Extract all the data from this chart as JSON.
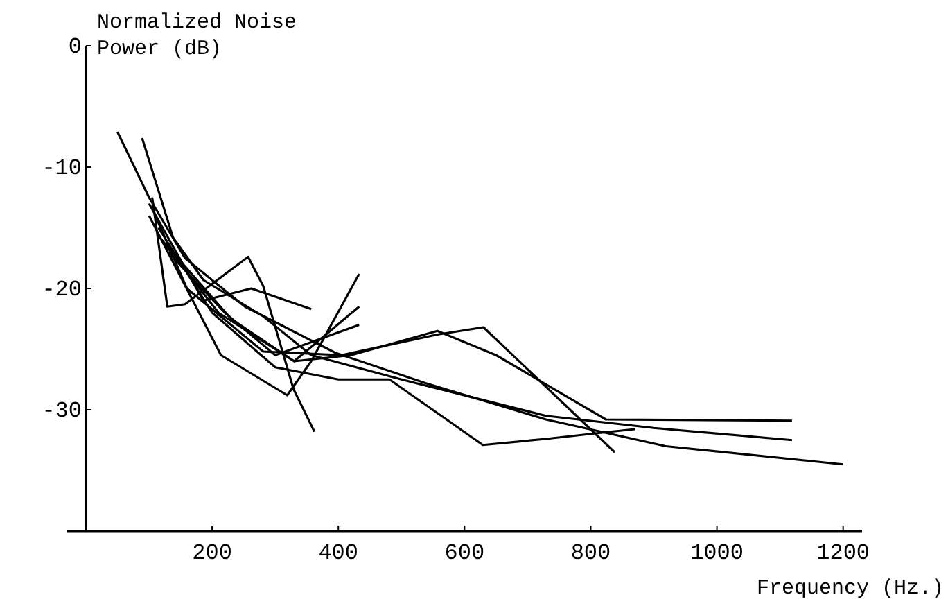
{
  "chart_data": {
    "type": "line",
    "ylabel": "Normalized Noise\nPower (dB)",
    "xlabel": "Frequency (Hz.)",
    "xlim": [
      0,
      1230
    ],
    "xticks": [
      200,
      400,
      600,
      800,
      1000,
      1200
    ],
    "ylim": [
      -40,
      0
    ],
    "yticks": [
      0,
      -10,
      -20,
      -30
    ],
    "grid": false,
    "marker": "none",
    "line_style": "solid",
    "series": [
      {
        "color": "#000000",
        "x": [
          50,
          100,
          157,
          252,
          395,
          538,
          729,
          919,
          1200
        ],
        "values": [
          -7.1,
          -12.5,
          -17.5,
          -21.5,
          -25.3,
          -27.8,
          -30.8,
          -33,
          -34.5
        ]
      },
      {
        "color": "#000000",
        "x": [
          89,
          138,
          186,
          281,
          357,
          500,
          729,
          900,
          1119
        ],
        "values": [
          -7.6,
          -15.8,
          -19.3,
          -22.3,
          -25.5,
          -27.5,
          -30.5,
          -31.5,
          -32.5
        ]
      },
      {
        "color": "#000000",
        "x": [
          105,
          129,
          157,
          257,
          281,
          329,
          362
        ],
        "values": [
          -12.5,
          -21.5,
          -21.3,
          -17.4,
          -19.8,
          -28.3,
          -31.8
        ]
      },
      {
        "color": "#000000",
        "x": [
          100,
          186,
          262,
          357
        ],
        "values": [
          -13,
          -21,
          -20,
          -21.7
        ]
      },
      {
        "color": "#000000",
        "x": [
          110,
          160,
          281,
          405,
          557,
          630,
          838
        ],
        "values": [
          -14,
          -20,
          -25.2,
          -25.5,
          -23.8,
          -23.2,
          -33.5
        ]
      },
      {
        "color": "#000000",
        "x": [
          115,
          200,
          300,
          400,
          481,
          629,
          729,
          833,
          870
        ],
        "values": [
          -15,
          -22,
          -26.5,
          -27.5,
          -27.5,
          -32.9,
          -32.4,
          -31.8,
          -31.6
        ]
      },
      {
        "color": "#000000",
        "x": [
          120,
          210,
          330,
          420,
          557,
          650,
          824,
          1119
        ],
        "values": [
          -16,
          -22,
          -26,
          -25.5,
          -23.5,
          -25.5,
          -30.8,
          -30.9
        ]
      },
      {
        "color": "#000000",
        "x": [
          100,
          214,
          319,
          357,
          433
        ],
        "values": [
          -14,
          -25.5,
          -28.8,
          -26,
          -18.8
        ]
      },
      {
        "color": "#000000",
        "x": [
          120,
          230,
          330,
          433
        ],
        "values": [
          -16,
          -22.5,
          -26,
          -21.5
        ]
      },
      {
        "color": "#000000",
        "x": [
          130,
          220,
          300,
          433
        ],
        "values": [
          -17,
          -22,
          -25.5,
          -23
        ]
      }
    ]
  }
}
